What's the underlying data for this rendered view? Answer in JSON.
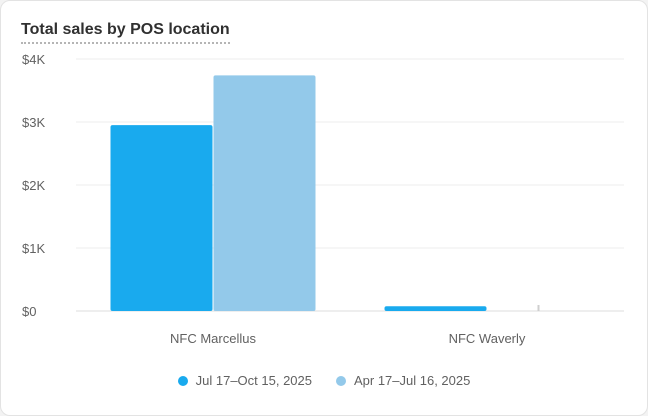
{
  "chart_data": {
    "type": "bar",
    "title": "Total sales by POS location",
    "categories": [
      "NFC Marcellus",
      "NFC Waverly"
    ],
    "series": [
      {
        "name": "Jul 17–Oct 15, 2025",
        "color": "#19aaee",
        "values": [
          2950,
          75
        ]
      },
      {
        "name": "Apr 17–Jul 16, 2025",
        "color": "#93c9ea",
        "values": [
          3740,
          0
        ]
      }
    ],
    "ylim": [
      0,
      4000
    ],
    "yticks": [
      0,
      1000,
      2000,
      3000,
      4000
    ],
    "ytick_labels": [
      "$0",
      "$1K",
      "$2K",
      "$3K",
      "$4K"
    ],
    "xlabel": "",
    "ylabel": "",
    "grid": true,
    "legend_position": "bottom-center"
  }
}
